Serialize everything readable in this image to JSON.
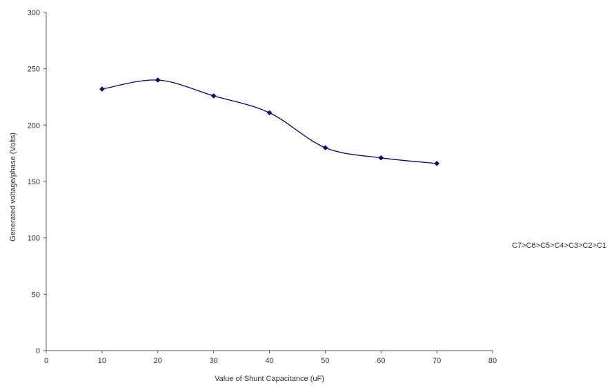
{
  "chart_data": {
    "type": "line",
    "title": "",
    "xlabel": "Value of Shunt Capacitance (uF)",
    "ylabel": "Generated voltage/phase (Volts)",
    "xlim": [
      0,
      80
    ],
    "ylim": [
      0,
      300
    ],
    "x_ticks": [
      0,
      10,
      20,
      30,
      40,
      50,
      60,
      70,
      80
    ],
    "y_ticks": [
      0,
      50,
      100,
      150,
      200,
      250,
      300
    ],
    "grid": false,
    "legend_position": "right",
    "series": [
      {
        "name": "C7>C6>C5>C4>C3>C2>C1",
        "color": "#000080",
        "marker": "diamond",
        "smooth": true,
        "x": [
          10,
          20,
          30,
          40,
          50,
          60,
          70
        ],
        "y": [
          232,
          240,
          226,
          211,
          180,
          171,
          166
        ]
      }
    ]
  }
}
